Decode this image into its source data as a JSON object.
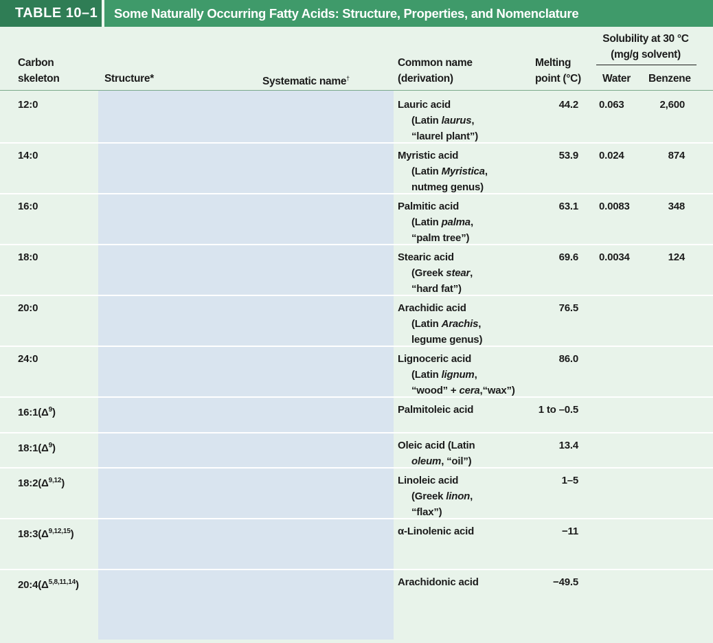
{
  "table": {
    "tag": "TABLE 10–1",
    "title": "Some Naturally Occurring Fatty Acids: Structure, Properties, and Nomenclature"
  },
  "headers": {
    "carbon_line1": "Carbon",
    "carbon_line2": "skeleton",
    "structure": "Structure*",
    "systematic": "Systematic name",
    "systematic_mark": "†",
    "common_line1": "Common name",
    "common_line2": "(derivation)",
    "melting_line1": "Melting",
    "melting_line2": "point (°C)",
    "solubility_line1": "Solubility at 30 °C",
    "solubility_line2": "(mg/g solvent)",
    "water": "Water",
    "benzene": "Benzene"
  },
  "rows": [
    {
      "skel": "12:0",
      "sup": "",
      "skel_tail": "",
      "name1": "Lauric acid",
      "name2_pre": "(Latin ",
      "name2_it": "laurus",
      "name2_post": ",",
      "name3_pre": "“laurel plant”)",
      "name3_it": "",
      "name3_post": "",
      "melt": "44.2",
      "water": "0.063",
      "benzene": "2,600"
    },
    {
      "skel": "14:0",
      "sup": "",
      "skel_tail": "",
      "name1": "Myristic acid",
      "name2_pre": "(Latin ",
      "name2_it": "Myristica",
      "name2_post": ",",
      "name3_pre": "nutmeg genus)",
      "name3_it": "",
      "name3_post": "",
      "melt": "53.9",
      "water": "0.024",
      "benzene": "874"
    },
    {
      "skel": "16:0",
      "sup": "",
      "skel_tail": "",
      "name1": "Palmitic acid",
      "name2_pre": "(Latin ",
      "name2_it": "palma",
      "name2_post": ",",
      "name3_pre": "“palm tree”)",
      "name3_it": "",
      "name3_post": "",
      "melt": "63.1",
      "water": "0.0083",
      "benzene": "348"
    },
    {
      "skel": "18:0",
      "sup": "",
      "skel_tail": "",
      "name1": "Stearic acid",
      "name2_pre": "(Greek ",
      "name2_it": "stear",
      "name2_post": ",",
      "name3_pre": "“hard fat”)",
      "name3_it": "",
      "name3_post": "",
      "melt": "69.6",
      "water": "0.0034",
      "benzene": "124"
    },
    {
      "skel": "20:0",
      "sup": "",
      "skel_tail": "",
      "name1": "Arachidic acid",
      "name2_pre": "(Latin ",
      "name2_it": "Arachis",
      "name2_post": ",",
      "name3_pre": "legume genus)",
      "name3_it": "",
      "name3_post": "",
      "melt": "76.5",
      "water": "",
      "benzene": ""
    },
    {
      "skel": "24:0",
      "sup": "",
      "skel_tail": "",
      "name1": "Lignoceric acid",
      "name2_pre": "(Latin ",
      "name2_it": "lignum",
      "name2_post": ",",
      "name3_pre": "“wood” + ",
      "name3_it": "cera",
      "name3_post": ",“wax”)",
      "melt": "86.0",
      "water": "",
      "benzene": ""
    },
    {
      "skel": "16:1(Δ",
      "sup": "9",
      "skel_tail": ")",
      "name1": "Palmitoleic acid",
      "name2_pre": "",
      "name2_it": "",
      "name2_post": "",
      "name3_pre": "",
      "name3_it": "",
      "name3_post": "",
      "melt": "1 to –0.5",
      "water": "",
      "benzene": ""
    },
    {
      "skel": "18:1(Δ",
      "sup": "9",
      "skel_tail": ")",
      "name1": "Oleic acid (Latin",
      "name2_pre": "",
      "name2_it": "oleum",
      "name2_post": ", “oil”)",
      "name3_pre": "",
      "name3_it": "",
      "name3_post": "",
      "melt": "13.4",
      "water": "",
      "benzene": ""
    },
    {
      "skel": "18:2(Δ",
      "sup": "9,12",
      "skel_tail": ")",
      "name1": "Linoleic acid",
      "name2_pre": "(Greek ",
      "name2_it": "linon",
      "name2_post": ",",
      "name3_pre": "“flax”)",
      "name3_it": "",
      "name3_post": "",
      "melt": "1–5",
      "water": "",
      "benzene": ""
    },
    {
      "skel": "18:3(Δ",
      "sup": "9,12,15",
      "skel_tail": ")",
      "name1": "α-Linolenic acid",
      "name2_pre": "",
      "name2_it": "",
      "name2_post": "",
      "name3_pre": "",
      "name3_it": "",
      "name3_post": "",
      "melt": "−11",
      "water": "",
      "benzene": ""
    },
    {
      "skel": "20:4(Δ",
      "sup": "5,8,11,14",
      "skel_tail": ")",
      "name1": "Arachidonic acid",
      "name2_pre": "",
      "name2_it": "",
      "name2_post": "",
      "name3_pre": "",
      "name3_it": "",
      "name3_post": "",
      "melt": "−49.5",
      "water": "",
      "benzene": ""
    }
  ]
}
